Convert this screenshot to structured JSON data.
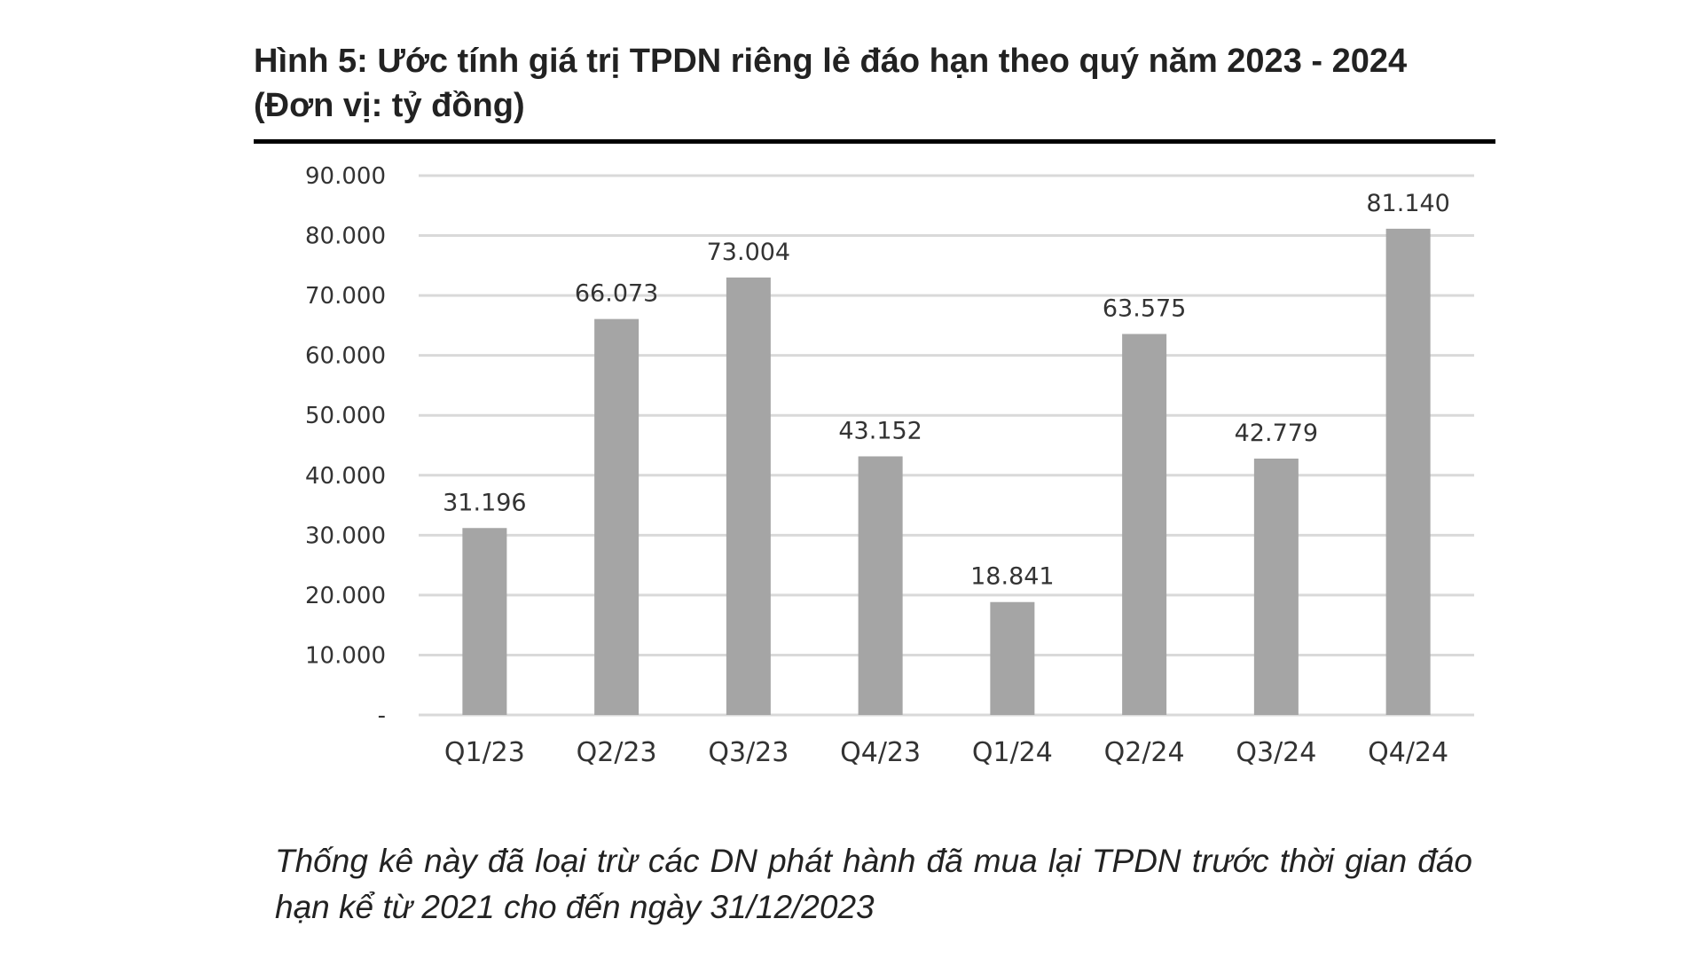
{
  "figure": {
    "title": "Hình 5: Ước tính giá trị TPDN riêng lẻ đáo hạn theo quý năm 2023 - 2024 (Đơn vị: tỷ đồng)",
    "note": "Thống kê này đã loại trừ các DN phát hành đã mua lại TPDN trước thời gian đáo hạn kể từ 2021 cho đến ngày 31/12/2023"
  },
  "chart_data": {
    "type": "bar",
    "title": "Hình 5: Ước tính giá trị TPDN riêng lẻ đáo hạn theo quý năm 2023 - 2024 (Đơn vị: tỷ đồng)",
    "categories": [
      "Q1/23",
      "Q2/23",
      "Q3/23",
      "Q4/23",
      "Q1/24",
      "Q2/24",
      "Q3/24",
      "Q4/24"
    ],
    "values": [
      31196,
      66073,
      73004,
      43152,
      18841,
      63575,
      42779,
      81140
    ],
    "value_labels": [
      "31.196",
      "66.073",
      "73.004",
      "43.152",
      "18.841",
      "63.575",
      "42.779",
      "81.140"
    ],
    "ylim": [
      0,
      90000
    ],
    "yticks": [
      0,
      10000,
      20000,
      30000,
      40000,
      50000,
      60000,
      70000,
      80000,
      90000
    ],
    "ytick_labels": [
      "-",
      "10.000",
      "20.000",
      "30.000",
      "40.000",
      "50.000",
      "60.000",
      "70.000",
      "80.000",
      "90.000"
    ],
    "xlabel": "",
    "ylabel": "",
    "grid": true,
    "legend": "none",
    "bar_color": "#a5a5a5",
    "grid_color": "#d9d9d9"
  }
}
